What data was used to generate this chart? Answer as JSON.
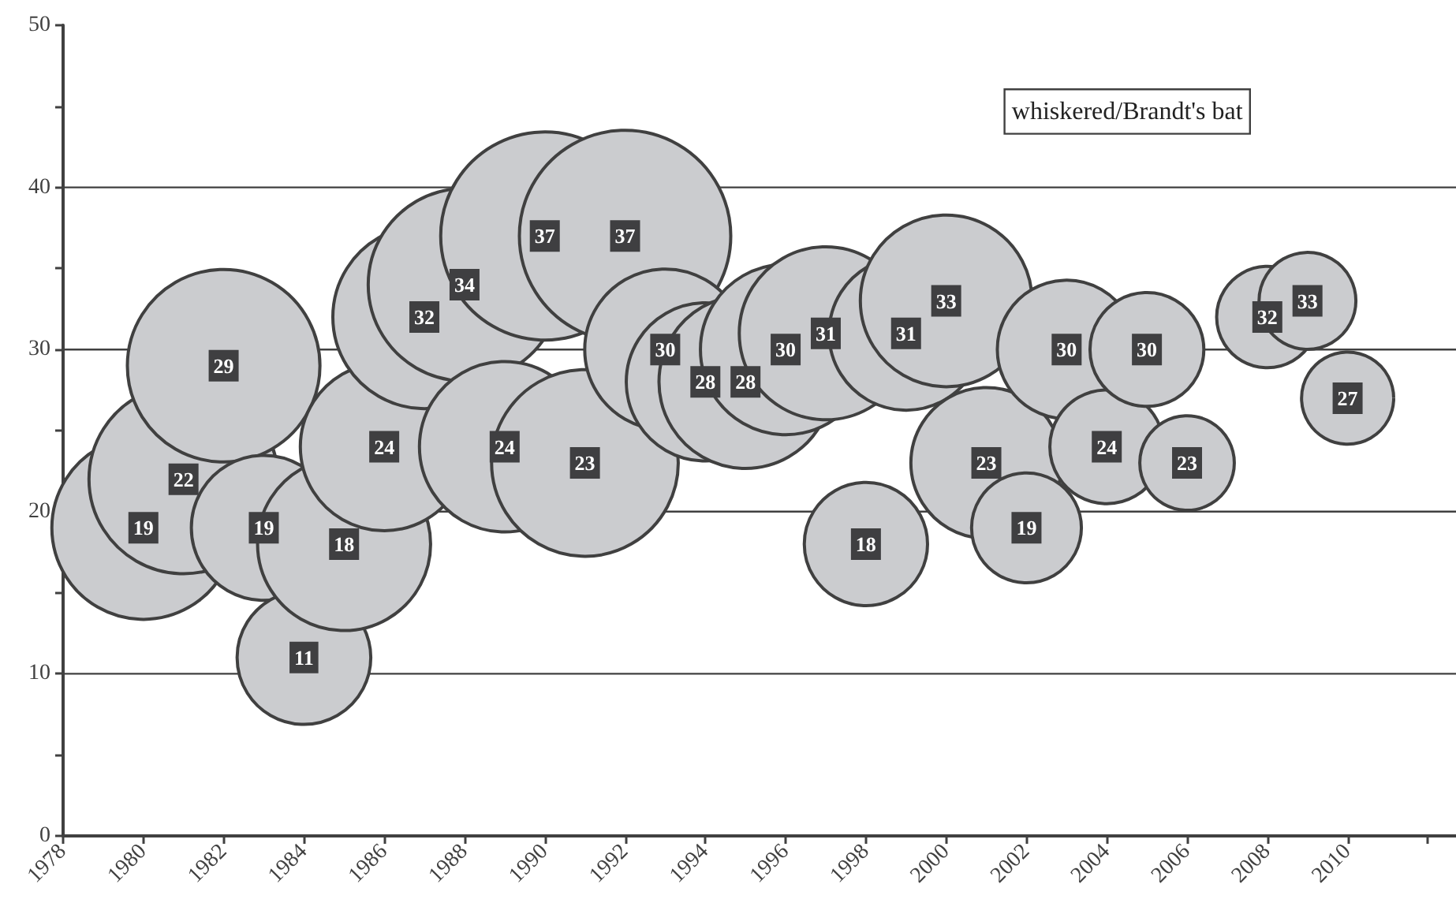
{
  "chart_data": {
    "type": "bubble",
    "x": [
      1980,
      1981,
      1982,
      1983,
      1984,
      1985,
      1986,
      1987,
      1988,
      1989,
      1990,
      1991,
      1992,
      1993,
      1994,
      1995,
      1996,
      1997,
      1998,
      1999,
      2000,
      2001,
      2002,
      2003,
      2004,
      2005,
      2006,
      2008,
      2009,
      2010
    ],
    "values": [
      19,
      22,
      29,
      19,
      11,
      18,
      24,
      32,
      34,
      24,
      37,
      23,
      37,
      30,
      28,
      28,
      30,
      31,
      18,
      31,
      33,
      23,
      19,
      30,
      24,
      30,
      23,
      32,
      33,
      27
    ],
    "sizes": [
      0.75,
      0.8,
      0.83,
      0.47,
      0.4,
      0.67,
      0.63,
      0.75,
      0.83,
      0.65,
      0.97,
      0.78,
      1,
      0.58,
      0.56,
      0.67,
      0.65,
      0.67,
      0.34,
      0.53,
      0.66,
      0.51,
      0.27,
      0.43,
      0.29,
      0.29,
      0.2,
      0.23,
      0.21,
      0.19
    ],
    "color": "#cbcccf",
    "data_labels": true,
    "annotations": [
      "whiskered/Brandt's bat"
    ],
    "xlim": [
      1978,
      2012.7
    ],
    "xticks": [
      1978,
      1980,
      1982,
      1984,
      1986,
      1988,
      1990,
      1992,
      1994,
      1996,
      1998,
      2000,
      2002,
      2004,
      2006,
      2008,
      2010,
      {
        "value": 2012,
        "label": null
      }
    ],
    "ylim": [
      0,
      50
    ],
    "yticks": [
      0,
      {
        "value": 5,
        "label": null
      },
      10,
      {
        "value": 15,
        "label": null
      },
      20,
      {
        "value": 25,
        "label": null
      },
      30,
      {
        "value": 35,
        "label": null
      },
      40,
      {
        "value": 45,
        "label": null
      },
      50
    ],
    "grid": "y",
    "marker": "circle"
  }
}
